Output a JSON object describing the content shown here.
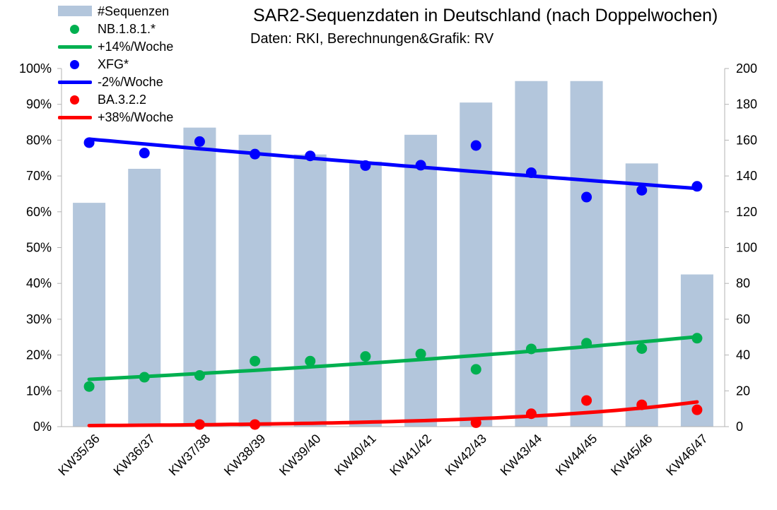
{
  "chart_data": {
    "type": "bar+scatter+line",
    "title": "SAR2-Sequenzdaten in Deutschland (nach Doppelwochen)",
    "subtitle": "Daten: RKI, Berechnungen&Grafik: RV",
    "categories": [
      "KW35/36",
      "KW36/37",
      "KW37/38",
      "KW38/39",
      "KW39/40",
      "KW40/41",
      "KW41/42",
      "KW42/43",
      "KW43/44",
      "KW44/45",
      "KW45/46",
      "KW46/47"
    ],
    "left_axis": {
      "ylim": [
        0,
        100
      ],
      "ticks": [
        "0%",
        "10%",
        "20%",
        "30%",
        "40%",
        "50%",
        "60%",
        "70%",
        "80%",
        "90%",
        "100%"
      ]
    },
    "right_axis": {
      "ylim": [
        0,
        200
      ],
      "ticks": [
        "0",
        "20",
        "40",
        "60",
        "80",
        "100",
        "120",
        "140",
        "160",
        "180",
        "200"
      ]
    },
    "grid": false,
    "legend_position": "top-left",
    "bars": {
      "name": "#Sequenzen",
      "axis": "right",
      "color": "#b3c6dc",
      "values": [
        125,
        144,
        167,
        163,
        152,
        148,
        163,
        181,
        193,
        193,
        147,
        85
      ]
    },
    "series": [
      {
        "name": "NB.1.8.1.*",
        "axis": "left",
        "color": "#00b050",
        "values": [
          11.2,
          13.8,
          14.3,
          18.3,
          18.3,
          19.6,
          20.3,
          16.0,
          21.7,
          23.3,
          21.8,
          24.7
        ]
      },
      {
        "name": "XFG*",
        "axis": "left",
        "color": "#0000ff",
        "values": [
          79.3,
          76.4,
          79.6,
          76.1,
          75.6,
          72.9,
          73.0,
          78.5,
          70.9,
          64.1,
          66.0,
          67.1
        ]
      },
      {
        "name": "BA.3.2.2",
        "axis": "left",
        "color": "#ff0000",
        "values": [
          null,
          null,
          0.6,
          0.6,
          null,
          null,
          null,
          1.1,
          3.6,
          7.3,
          6.1,
          4.7
        ]
      }
    ],
    "trend_lines": [
      {
        "name": "+14%/Woche",
        "color": "#00b050",
        "start": 13.2,
        "end": 25.1
      },
      {
        "name": "-2%/Woche",
        "color": "#0000ff",
        "start": 80.3,
        "end": 66.5
      },
      {
        "name": "+38%/Woche",
        "color": "#ff0000",
        "start": 0.3,
        "end": 6.9
      }
    ]
  }
}
